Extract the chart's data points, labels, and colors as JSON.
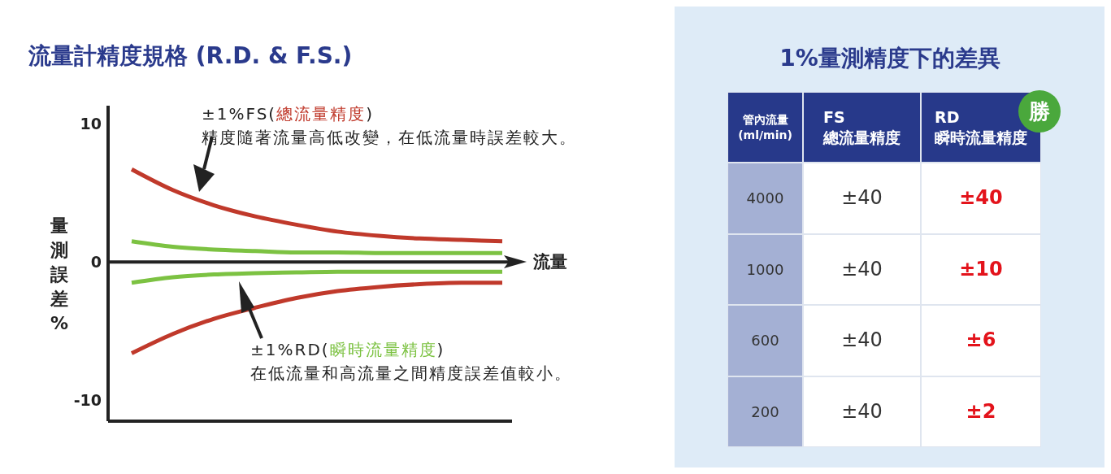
{
  "chart_data": [
    {
      "type": "line",
      "title": "流量計精度規格 (R.D. & F.S.)",
      "xlabel": "流量",
      "ylabel": "量測誤差%",
      "categories": [
        null,
        null,
        null,
        null,
        null,
        null,
        null,
        null,
        null,
        null
      ],
      "series": [
        {
          "color": "#c0392b",
          "values": [
            6.7,
            5.2,
            4.1,
            3.3,
            2.7,
            2.2,
            1.9,
            1.7,
            1.6,
            1.5
          ]
        },
        {
          "color": "#7cc242",
          "values": [
            1.5,
            1.1,
            0.9,
            0.8,
            0.7,
            0.7,
            0.65,
            0.65,
            0.65,
            0.65
          ]
        },
        {
          "color": "#7cc242",
          "values": [
            -1.5,
            -1.1,
            -0.9,
            -0.8,
            -0.75,
            -0.7,
            -0.7,
            -0.7,
            -0.7,
            -0.7
          ]
        },
        {
          "color": "#c0392b",
          "values": [
            -6.6,
            -5.2,
            -4.1,
            -3.3,
            -2.6,
            -2.1,
            -1.8,
            -1.6,
            -1.5,
            -1.5
          ]
        }
      ],
      "ylim": [
        -11.5,
        11.3
      ],
      "yticks": [
        -10,
        0,
        10
      ],
      "grid": false,
      "legend": false,
      "marker": "none",
      "line_style": "solid",
      "ref_lines": [
        {
          "axis": "y",
          "value": 0,
          "color": "#222222"
        }
      ],
      "annotations": [
        "±1%FS(總流量精度)\n精度隨著流量高低改變，在低流量時誤差較大。",
        "±1%RD(瞬時流量精度)\n在低流量和高流量之間精度誤差值較小。"
      ]
    },
    {
      "type": "other",
      "title": "1%量測精度下的差異",
      "annotations": [
        "管內流量\n(ml/min)",
        "FS\n總流量精度",
        "RD\n瞬時流量精度",
        "4000",
        "±40",
        "±40",
        "1000",
        "±40",
        "±10",
        "600",
        "±40",
        "±6",
        "200",
        "±40",
        "±2",
        "勝"
      ]
    }
  ]
}
